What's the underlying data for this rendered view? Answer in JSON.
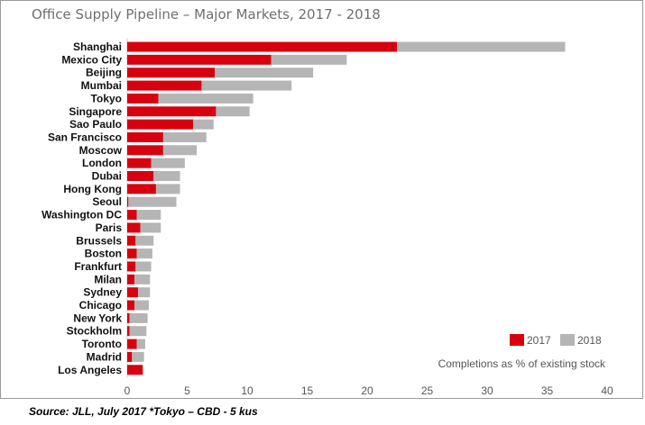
{
  "title": "Office Supply Pipeline – Major Markets, 2017 - 2018",
  "source": "Source: JLL, July 2017 *Tokyo – CBD - 5 kus",
  "colors": {
    "2017": "#d7000f",
    "2018": "#b5b5b5"
  },
  "chart_data": {
    "type": "bar",
    "orientation": "horizontal",
    "stacked": true,
    "title": "Office Supply Pipeline – Major Markets, 2017 - 2018",
    "note": "Completions as % of existing stock",
    "xlabel": "",
    "ylabel": "",
    "xlim": [
      0,
      40
    ],
    "xticks": [
      "0",
      "5",
      "10",
      "15",
      "20",
      "25",
      "30",
      "35",
      "40"
    ],
    "grid": false,
    "legend_position": "bottom-right",
    "categories": [
      "Shanghai",
      "Mexico City",
      "Beijing",
      "Mumbai",
      "Tokyo",
      "Singapore",
      "Sao Paulo",
      "San Francisco",
      "Moscow",
      "London",
      "Dubai",
      "Hong Kong",
      "Seoul",
      "Washington DC",
      "Paris",
      "Brussels",
      "Boston",
      "Frankfurt",
      "Milan",
      "Sydney",
      "Chicago",
      "New York",
      "Stockholm",
      "Toronto",
      "Madrid",
      "Los Angeles"
    ],
    "series": [
      {
        "name": "2017",
        "values": [
          22.5,
          12.0,
          7.3,
          6.2,
          2.6,
          7.4,
          5.5,
          3.0,
          3.0,
          2.0,
          2.2,
          2.4,
          0.1,
          0.8,
          1.1,
          0.7,
          0.8,
          0.7,
          0.6,
          0.9,
          0.6,
          0.2,
          0.2,
          0.8,
          0.4,
          1.3
        ]
      },
      {
        "name": "2018",
        "values": [
          14.0,
          6.3,
          8.2,
          7.5,
          7.9,
          2.8,
          1.7,
          3.6,
          2.8,
          2.8,
          2.2,
          2.0,
          4.0,
          2.0,
          1.7,
          1.5,
          1.3,
          1.3,
          1.3,
          1.0,
          1.2,
          1.5,
          1.4,
          0.7,
          1.0,
          0.0
        ]
      }
    ]
  }
}
